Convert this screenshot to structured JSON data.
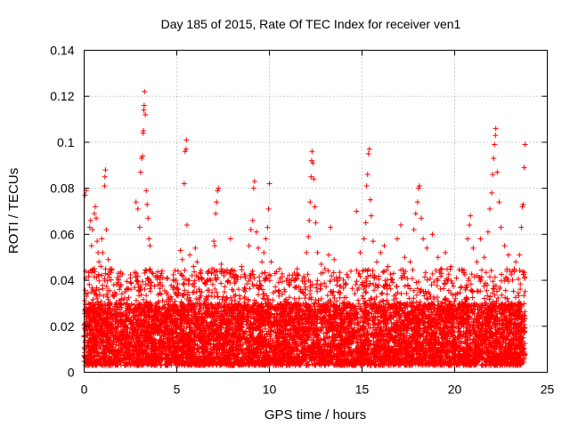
{
  "chart_data": {
    "type": "scatter",
    "title": "Day 185 of 2015, Rate Of TEC Index for receiver ven1",
    "xlabel": "GPS time / hours",
    "ylabel": "ROTI / TECUs",
    "xlim": [
      0,
      25
    ],
    "ylim": [
      0,
      0.14
    ],
    "xticks": [
      0,
      5,
      10,
      15,
      20,
      25
    ],
    "xtick_labels": [
      "0",
      "5",
      "10",
      "15",
      "20",
      "25"
    ],
    "yticks": [
      0,
      0.02,
      0.04,
      0.06,
      0.08,
      0.1,
      0.12,
      0.14
    ],
    "ytick_labels": [
      "0",
      "0.02",
      "0.04",
      "0.06",
      "0.08",
      "0.1",
      "0.12",
      "0.14"
    ],
    "grid": true,
    "marker": "+",
    "color": "#ff0000",
    "series": [
      {
        "name": "ROTI",
        "points": [
          [
            0.05,
            0.077
          ],
          [
            0.1,
            0.079
          ],
          [
            0.3,
            0.063
          ],
          [
            0.35,
            0.066
          ],
          [
            0.4,
            0.055
          ],
          [
            0.45,
            0.062
          ],
          [
            0.55,
            0.069
          ],
          [
            0.6,
            0.072
          ],
          [
            0.65,
            0.067
          ],
          [
            0.7,
            0.057
          ],
          [
            0.75,
            0.052
          ],
          [
            0.8,
            0.048
          ],
          [
            0.9,
            0.046
          ],
          [
            0.95,
            0.058
          ],
          [
            1.0,
            0.052
          ],
          [
            1.1,
            0.081
          ],
          [
            1.12,
            0.085
          ],
          [
            1.15,
            0.088
          ],
          [
            1.2,
            0.062
          ],
          [
            1.3,
            0.049
          ],
          [
            1.4,
            0.045
          ],
          [
            1.6,
            0.038
          ],
          [
            1.9,
            0.036
          ],
          [
            2.2,
            0.035
          ],
          [
            2.5,
            0.041
          ],
          [
            2.8,
            0.074
          ],
          [
            2.9,
            0.071
          ],
          [
            3.0,
            0.063
          ],
          [
            3.05,
            0.087
          ],
          [
            3.1,
            0.093
          ],
          [
            3.15,
            0.094
          ],
          [
            3.18,
            0.104
          ],
          [
            3.2,
            0.105
          ],
          [
            3.22,
            0.114
          ],
          [
            3.24,
            0.116
          ],
          [
            3.26,
            0.122
          ],
          [
            3.3,
            0.112
          ],
          [
            3.35,
            0.079
          ],
          [
            3.4,
            0.073
          ],
          [
            3.45,
            0.067
          ],
          [
            3.5,
            0.058
          ],
          [
            3.55,
            0.055
          ],
          [
            3.7,
            0.043
          ],
          [
            4.1,
            0.039
          ],
          [
            4.5,
            0.041
          ],
          [
            4.8,
            0.037
          ],
          [
            5.2,
            0.053
          ],
          [
            5.3,
            0.049
          ],
          [
            5.4,
            0.082
          ],
          [
            5.45,
            0.096
          ],
          [
            5.5,
            0.097
          ],
          [
            5.52,
            0.101
          ],
          [
            5.55,
            0.064
          ],
          [
            5.7,
            0.051
          ],
          [
            5.9,
            0.046
          ],
          [
            6.0,
            0.054
          ],
          [
            6.1,
            0.048
          ],
          [
            6.3,
            0.043
          ],
          [
            6.5,
            0.039
          ],
          [
            6.9,
            0.045
          ],
          [
            7.0,
            0.057
          ],
          [
            7.05,
            0.055
          ],
          [
            7.1,
            0.069
          ],
          [
            7.15,
            0.074
          ],
          [
            7.2,
            0.079
          ],
          [
            7.25,
            0.08
          ],
          [
            7.4,
            0.047
          ],
          [
            7.6,
            0.044
          ],
          [
            7.9,
            0.058
          ],
          [
            8.2,
            0.042
          ],
          [
            8.5,
            0.046
          ],
          [
            8.7,
            0.041
          ],
          [
            8.9,
            0.055
          ],
          [
            9.0,
            0.062
          ],
          [
            9.1,
            0.066
          ],
          [
            9.15,
            0.08
          ],
          [
            9.2,
            0.083
          ],
          [
            9.3,
            0.061
          ],
          [
            9.4,
            0.054
          ],
          [
            9.6,
            0.048
          ],
          [
            9.7,
            0.052
          ],
          [
            9.8,
            0.058
          ],
          [
            9.9,
            0.063
          ],
          [
            9.95,
            0.071
          ],
          [
            10.0,
            0.082
          ],
          [
            10.1,
            0.048
          ],
          [
            10.3,
            0.043
          ],
          [
            10.5,
            0.039
          ],
          [
            10.8,
            0.036
          ],
          [
            11.1,
            0.038
          ],
          [
            11.4,
            0.041
          ],
          [
            11.7,
            0.036
          ],
          [
            12.0,
            0.052
          ],
          [
            12.1,
            0.059
          ],
          [
            12.15,
            0.066
          ],
          [
            12.2,
            0.074
          ],
          [
            12.25,
            0.085
          ],
          [
            12.28,
            0.092
          ],
          [
            12.3,
            0.096
          ],
          [
            12.35,
            0.091
          ],
          [
            12.4,
            0.084
          ],
          [
            12.45,
            0.072
          ],
          [
            12.5,
            0.065
          ],
          [
            12.6,
            0.052
          ],
          [
            12.8,
            0.047
          ],
          [
            13.0,
            0.045
          ],
          [
            13.2,
            0.051
          ],
          [
            13.3,
            0.063
          ],
          [
            13.5,
            0.049
          ],
          [
            13.8,
            0.041
          ],
          [
            14.1,
            0.038
          ],
          [
            14.4,
            0.044
          ],
          [
            14.7,
            0.07
          ],
          [
            14.9,
            0.052
          ],
          [
            15.1,
            0.058
          ],
          [
            15.2,
            0.065
          ],
          [
            15.25,
            0.081
          ],
          [
            15.3,
            0.086
          ],
          [
            15.35,
            0.095
          ],
          [
            15.4,
            0.097
          ],
          [
            15.45,
            0.075
          ],
          [
            15.5,
            0.068
          ],
          [
            15.6,
            0.057
          ],
          [
            15.8,
            0.048
          ],
          [
            16.0,
            0.052
          ],
          [
            16.2,
            0.055
          ],
          [
            16.4,
            0.046
          ],
          [
            16.7,
            0.043
          ],
          [
            16.9,
            0.058
          ],
          [
            17.1,
            0.064
          ],
          [
            17.3,
            0.05
          ],
          [
            17.6,
            0.048
          ],
          [
            17.8,
            0.062
          ],
          [
            17.9,
            0.069
          ],
          [
            18.0,
            0.074
          ],
          [
            18.05,
            0.08
          ],
          [
            18.1,
            0.081
          ],
          [
            18.2,
            0.067
          ],
          [
            18.3,
            0.058
          ],
          [
            18.5,
            0.054
          ],
          [
            18.8,
            0.06
          ],
          [
            19.1,
            0.05
          ],
          [
            19.3,
            0.045
          ],
          [
            19.5,
            0.052
          ],
          [
            19.8,
            0.046
          ],
          [
            20.1,
            0.041
          ],
          [
            20.4,
            0.044
          ],
          [
            20.7,
            0.058
          ],
          [
            20.8,
            0.064
          ],
          [
            20.85,
            0.068
          ],
          [
            21.0,
            0.054
          ],
          [
            21.2,
            0.048
          ],
          [
            21.4,
            0.058
          ],
          [
            21.6,
            0.05
          ],
          [
            21.8,
            0.061
          ],
          [
            21.9,
            0.071
          ],
          [
            22.0,
            0.078
          ],
          [
            22.05,
            0.086
          ],
          [
            22.1,
            0.093
          ],
          [
            22.15,
            0.099
          ],
          [
            22.2,
            0.103
          ],
          [
            22.22,
            0.106
          ],
          [
            22.3,
            0.087
          ],
          [
            22.4,
            0.074
          ],
          [
            22.5,
            0.063
          ],
          [
            22.7,
            0.055
          ],
          [
            22.9,
            0.051
          ],
          [
            23.1,
            0.044
          ],
          [
            23.3,
            0.048
          ],
          [
            23.5,
            0.051
          ],
          [
            23.6,
            0.063
          ],
          [
            23.65,
            0.072
          ],
          [
            23.7,
            0.073
          ],
          [
            23.75,
            0.089
          ],
          [
            23.8,
            0.099
          ]
        ],
        "dense_band": {
          "x_start": 0.0,
          "x_end": 23.8,
          "y_floor": 0.003,
          "y_typical_max": 0.03,
          "y_occasional_max": 0.045,
          "count": 9000
        }
      }
    ]
  }
}
